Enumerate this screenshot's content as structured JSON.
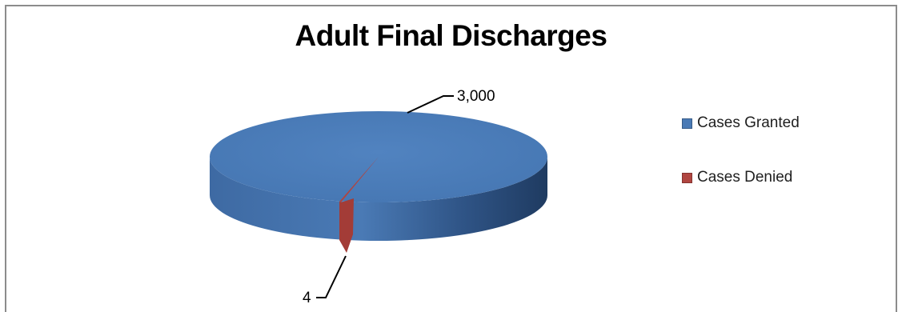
{
  "chart_data": {
    "type": "pie",
    "title": "Adult Final Discharges",
    "categories": [
      "Cases Granted",
      "Cases Denied"
    ],
    "values": [
      3000,
      4
    ],
    "data_labels": [
      "3,000",
      "4"
    ],
    "colors": [
      "#4a7ab5",
      "#b04540"
    ],
    "legend_position": "right",
    "three_d": true
  }
}
